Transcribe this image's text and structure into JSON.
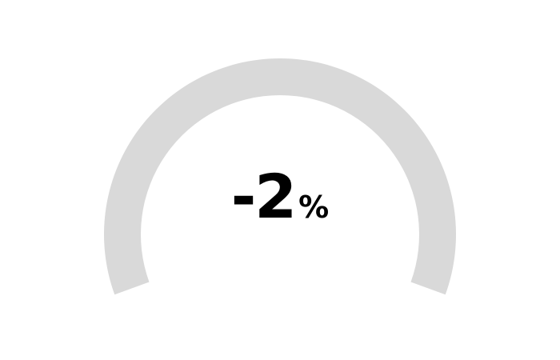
{
  "chart_data": {
    "type": "gauge",
    "value": -2,
    "unit": "%",
    "display_value": "-2",
    "track_color": "#d9d9d9",
    "fill_color": "#d9d9d9",
    "text_color": "#000000"
  }
}
